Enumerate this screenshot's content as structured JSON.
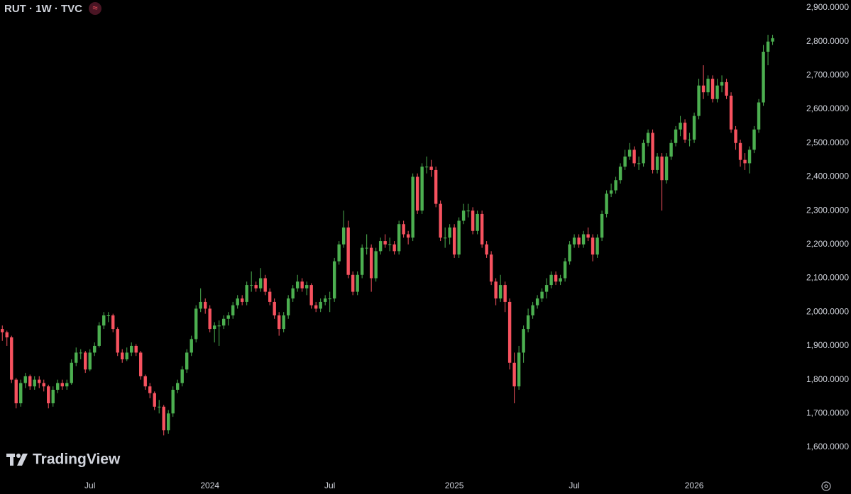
{
  "chart_data": {
    "type": "candlestick",
    "title": "RUT · 1W · TVC",
    "status_icon": "≈",
    "watermark": "TradingView",
    "up_color": "#4caf50",
    "down_color": "#f7525f",
    "ylim": [
      1512,
      2923
    ],
    "yticks": [
      {
        "value": 1600,
        "label": "1,600.0000"
      },
      {
        "value": 1700,
        "label": "1,700.0000"
      },
      {
        "value": 1800,
        "label": "1,800.0000"
      },
      {
        "value": 1900,
        "label": "1,900.0000"
      },
      {
        "value": 2000,
        "label": "2,000.0000"
      },
      {
        "value": 2100,
        "label": "2,100.0000"
      },
      {
        "value": 2200,
        "label": "2,200.0000"
      },
      {
        "value": 2300,
        "label": "2,300.0000"
      },
      {
        "value": 2400,
        "label": "2,400.0000"
      },
      {
        "value": 2500,
        "label": "2,500.0000"
      },
      {
        "value": 2600,
        "label": "2,600.0000"
      },
      {
        "value": 2700,
        "label": "2,700.0000"
      },
      {
        "value": 2800,
        "label": "2,800.0000"
      },
      {
        "value": 2900,
        "label": "2,900.0000"
      }
    ],
    "xlim": [
      -0.5,
      170.3
    ],
    "xticks": [
      {
        "value": 19,
        "label": "Jul"
      },
      {
        "value": 45,
        "label": "2024"
      },
      {
        "value": 71,
        "label": "Jul"
      },
      {
        "value": 98,
        "label": "2025"
      },
      {
        "value": 124,
        "label": "Jul"
      },
      {
        "value": 150,
        "label": "2026"
      }
    ],
    "ohlc": [
      [
        1950,
        1960,
        1915,
        1940
      ],
      [
        1940,
        1945,
        1900,
        1925
      ],
      [
        1925,
        1930,
        1790,
        1800
      ],
      [
        1800,
        1805,
        1715,
        1730
      ],
      [
        1730,
        1800,
        1720,
        1790
      ],
      [
        1790,
        1820,
        1775,
        1810
      ],
      [
        1810,
        1815,
        1770,
        1780
      ],
      [
        1780,
        1810,
        1770,
        1800
      ],
      [
        1800,
        1810,
        1775,
        1790
      ],
      [
        1790,
        1800,
        1765,
        1780
      ],
      [
        1780,
        1785,
        1715,
        1730
      ],
      [
        1730,
        1780,
        1720,
        1770
      ],
      [
        1770,
        1800,
        1760,
        1790
      ],
      [
        1790,
        1800,
        1770,
        1780
      ],
      [
        1780,
        1800,
        1770,
        1790
      ],
      [
        1790,
        1860,
        1785,
        1850
      ],
      [
        1850,
        1895,
        1840,
        1880
      ],
      [
        1880,
        1890,
        1860,
        1880
      ],
      [
        1880,
        1885,
        1820,
        1830
      ],
      [
        1830,
        1890,
        1825,
        1880
      ],
      [
        1880,
        1910,
        1870,
        1900
      ],
      [
        1900,
        1970,
        1895,
        1960
      ],
      [
        1960,
        2000,
        1950,
        1990
      ],
      [
        1990,
        2000,
        1970,
        1990
      ],
      [
        1990,
        1995,
        1940,
        1950
      ],
      [
        1950,
        1955,
        1870,
        1880
      ],
      [
        1880,
        1890,
        1850,
        1860
      ],
      [
        1860,
        1895,
        1855,
        1880
      ],
      [
        1880,
        1910,
        1870,
        1900
      ],
      [
        1900,
        1905,
        1870,
        1880
      ],
      [
        1880,
        1885,
        1800,
        1810
      ],
      [
        1810,
        1815,
        1770,
        1780
      ],
      [
        1780,
        1790,
        1745,
        1760
      ],
      [
        1760,
        1765,
        1710,
        1720
      ],
      [
        1720,
        1740,
        1700,
        1720
      ],
      [
        1720,
        1725,
        1635,
        1650
      ],
      [
        1650,
        1710,
        1640,
        1700
      ],
      [
        1700,
        1780,
        1690,
        1770
      ],
      [
        1770,
        1800,
        1760,
        1790
      ],
      [
        1790,
        1840,
        1780,
        1830
      ],
      [
        1830,
        1890,
        1820,
        1880
      ],
      [
        1880,
        1930,
        1870,
        1920
      ],
      [
        1920,
        2020,
        1910,
        2010
      ],
      [
        2010,
        2070,
        2000,
        2030
      ],
      [
        2030,
        2040,
        1995,
        2010
      ],
      [
        2010,
        2020,
        1940,
        1950
      ],
      [
        1950,
        1970,
        1910,
        1960
      ],
      [
        1960,
        1975,
        1900,
        1960
      ],
      [
        1960,
        1990,
        1950,
        1980
      ],
      [
        1980,
        2000,
        1960,
        1990
      ],
      [
        1990,
        2030,
        1980,
        2020
      ],
      [
        2020,
        2050,
        2010,
        2040
      ],
      [
        2040,
        2050,
        2020,
        2030
      ],
      [
        2030,
        2090,
        2020,
        2080
      ],
      [
        2080,
        2120,
        2060,
        2080
      ],
      [
        2080,
        2090,
        2060,
        2070
      ],
      [
        2070,
        2130,
        2060,
        2100
      ],
      [
        2100,
        2110,
        2050,
        2060
      ],
      [
        2060,
        2070,
        2020,
        2030
      ],
      [
        2030,
        2040,
        1980,
        1990
      ],
      [
        1990,
        2000,
        1930,
        1950
      ],
      [
        1950,
        2000,
        1940,
        1990
      ],
      [
        1990,
        2050,
        1980,
        2040
      ],
      [
        2040,
        2080,
        2030,
        2070
      ],
      [
        2070,
        2110,
        2060,
        2090
      ],
      [
        2090,
        2100,
        2060,
        2070
      ],
      [
        2070,
        2090,
        2050,
        2080
      ],
      [
        2080,
        2085,
        2010,
        2020
      ],
      [
        2020,
        2030,
        2000,
        2010
      ],
      [
        2010,
        2040,
        2000,
        2030
      ],
      [
        2030,
        2050,
        2020,
        2040
      ],
      [
        2040,
        2060,
        2000,
        2040
      ],
      [
        2040,
        2160,
        2030,
        2150
      ],
      [
        2150,
        2210,
        2140,
        2200
      ],
      [
        2200,
        2300,
        2190,
        2250
      ],
      [
        2250,
        2270,
        2100,
        2110
      ],
      [
        2110,
        2120,
        2050,
        2060
      ],
      [
        2060,
        2120,
        2050,
        2110
      ],
      [
        2110,
        2200,
        2100,
        2190
      ],
      [
        2190,
        2230,
        2170,
        2190
      ],
      [
        2190,
        2200,
        2060,
        2100
      ],
      [
        2100,
        2190,
        2090,
        2180
      ],
      [
        2180,
        2220,
        2170,
        2210
      ],
      [
        2210,
        2230,
        2190,
        2200
      ],
      [
        2200,
        2220,
        2180,
        2200
      ],
      [
        2200,
        2210,
        2170,
        2180
      ],
      [
        2180,
        2270,
        2170,
        2260
      ],
      [
        2260,
        2270,
        2220,
        2230
      ],
      [
        2230,
        2240,
        2200,
        2220
      ],
      [
        2220,
        2410,
        2210,
        2400
      ],
      [
        2400,
        2410,
        2290,
        2300
      ],
      [
        2300,
        2440,
        2290,
        2430
      ],
      [
        2430,
        2460,
        2410,
        2430
      ],
      [
        2430,
        2450,
        2400,
        2420
      ],
      [
        2420,
        2430,
        2310,
        2320
      ],
      [
        2320,
        2330,
        2210,
        2220
      ],
      [
        2220,
        2250,
        2190,
        2220
      ],
      [
        2220,
        2260,
        2200,
        2250
      ],
      [
        2250,
        2260,
        2160,
        2170
      ],
      [
        2170,
        2280,
        2160,
        2270
      ],
      [
        2270,
        2320,
        2260,
        2300
      ],
      [
        2300,
        2320,
        2280,
        2300
      ],
      [
        2300,
        2310,
        2230,
        2240
      ],
      [
        2240,
        2300,
        2230,
        2290
      ],
      [
        2290,
        2300,
        2190,
        2200
      ],
      [
        2200,
        2210,
        2160,
        2170
      ],
      [
        2170,
        2180,
        2080,
        2090
      ],
      [
        2090,
        2100,
        2020,
        2040
      ],
      [
        2040,
        2110,
        2030,
        2080
      ],
      [
        2080,
        2090,
        2000,
        2030
      ],
      [
        2030,
        2040,
        1830,
        1850
      ],
      [
        1850,
        1880,
        1730,
        1780
      ],
      [
        1780,
        1900,
        1770,
        1880
      ],
      [
        1880,
        1960,
        1850,
        1950
      ],
      [
        1950,
        2010,
        1940,
        1990
      ],
      [
        1990,
        2030,
        1980,
        2020
      ],
      [
        2020,
        2050,
        2010,
        2040
      ],
      [
        2040,
        2070,
        2030,
        2060
      ],
      [
        2060,
        2100,
        2040,
        2080
      ],
      [
        2080,
        2120,
        2070,
        2110
      ],
      [
        2110,
        2120,
        2080,
        2090
      ],
      [
        2090,
        2110,
        2080,
        2100
      ],
      [
        2100,
        2160,
        2090,
        2150
      ],
      [
        2150,
        2210,
        2140,
        2200
      ],
      [
        2200,
        2230,
        2190,
        2220
      ],
      [
        2220,
        2230,
        2190,
        2200
      ],
      [
        2200,
        2240,
        2190,
        2230
      ],
      [
        2230,
        2250,
        2210,
        2220
      ],
      [
        2220,
        2230,
        2150,
        2170
      ],
      [
        2170,
        2230,
        2160,
        2220
      ],
      [
        2220,
        2300,
        2210,
        2290
      ],
      [
        2290,
        2360,
        2280,
        2350
      ],
      [
        2350,
        2380,
        2340,
        2360
      ],
      [
        2360,
        2400,
        2350,
        2390
      ],
      [
        2390,
        2440,
        2380,
        2430
      ],
      [
        2430,
        2480,
        2420,
        2460
      ],
      [
        2460,
        2500,
        2450,
        2480
      ],
      [
        2480,
        2490,
        2430,
        2440
      ],
      [
        2440,
        2460,
        2420,
        2440
      ],
      [
        2440,
        2510,
        2430,
        2500
      ],
      [
        2500,
        2540,
        2490,
        2530
      ],
      [
        2530,
        2540,
        2410,
        2420
      ],
      [
        2420,
        2470,
        2410,
        2460
      ],
      [
        2460,
        2470,
        2300,
        2390
      ],
      [
        2390,
        2470,
        2380,
        2460
      ],
      [
        2460,
        2510,
        2450,
        2500
      ],
      [
        2500,
        2550,
        2490,
        2540
      ],
      [
        2540,
        2580,
        2520,
        2560
      ],
      [
        2560,
        2570,
        2500,
        2510
      ],
      [
        2510,
        2530,
        2490,
        2510
      ],
      [
        2510,
        2590,
        2500,
        2580
      ],
      [
        2580,
        2690,
        2570,
        2670
      ],
      [
        2670,
        2730,
        2630,
        2650
      ],
      [
        2650,
        2700,
        2640,
        2690
      ],
      [
        2690,
        2700,
        2620,
        2630
      ],
      [
        2630,
        2690,
        2620,
        2670
      ],
      [
        2670,
        2700,
        2650,
        2680
      ],
      [
        2680,
        2690,
        2630,
        2640
      ],
      [
        2640,
        2650,
        2530,
        2540
      ],
      [
        2540,
        2550,
        2480,
        2500
      ],
      [
        2500,
        2510,
        2430,
        2450
      ],
      [
        2450,
        2470,
        2420,
        2440
      ],
      [
        2440,
        2490,
        2410,
        2480
      ],
      [
        2480,
        2550,
        2470,
        2540
      ],
      [
        2540,
        2630,
        2530,
        2620
      ],
      [
        2620,
        2790,
        2610,
        2770
      ],
      [
        2770,
        2820,
        2730,
        2800
      ],
      [
        2800,
        2820,
        2790,
        2810
      ]
    ]
  }
}
